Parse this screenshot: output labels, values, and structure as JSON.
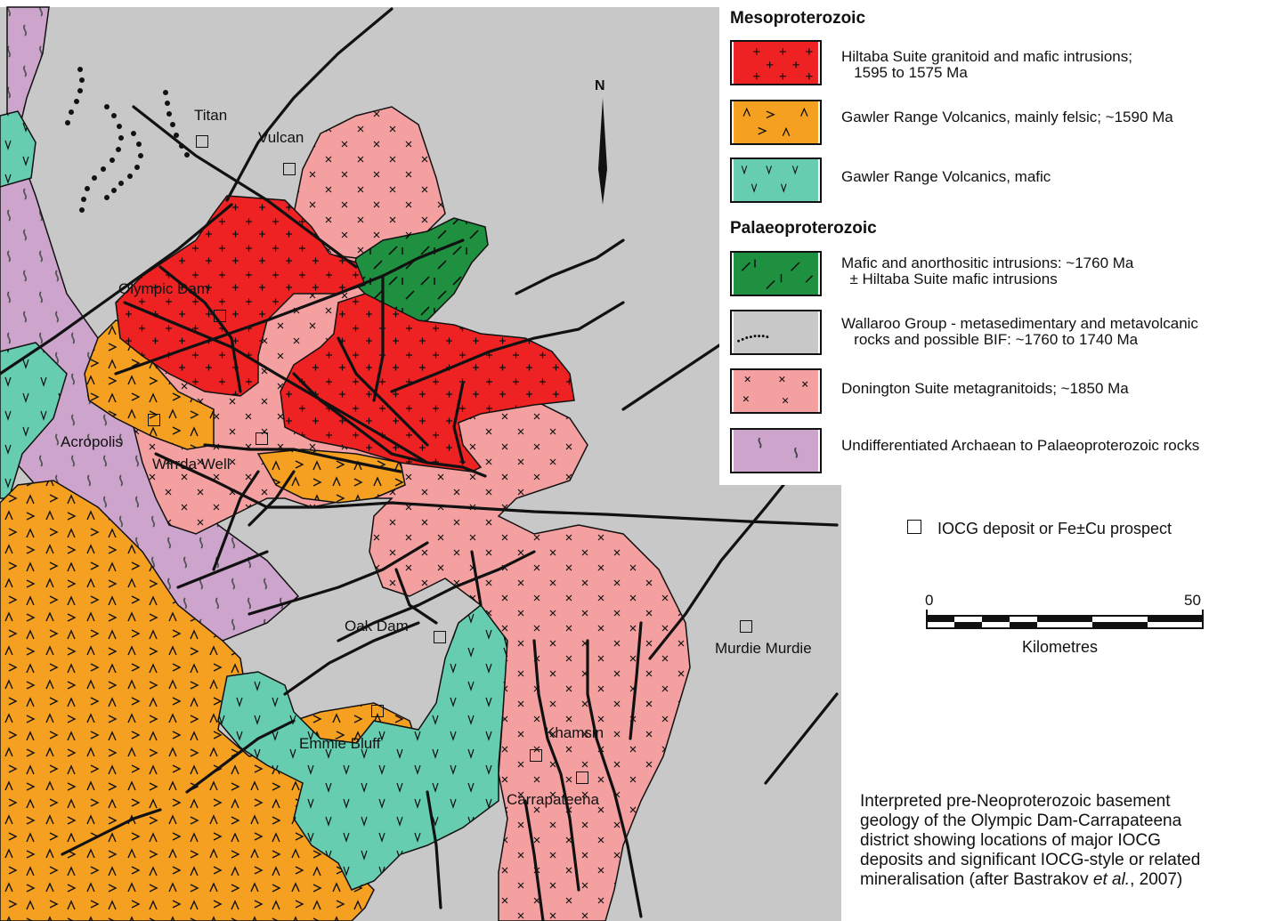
{
  "legend": {
    "heading_meso": "Mesoproterozoic",
    "heading_palaeo": "Palaeoproterozoic",
    "items": [
      {
        "key": "hiltaba",
        "label_line1": "Hiltaba Suite granitoid and mafic intrusions;",
        "label_line2": "   1595 to 1575 Ma",
        "color": "#ee2222",
        "pattern": "plus"
      },
      {
        "key": "grv_felsic",
        "label_line1": "Gawler Range Volcanics, mainly felsic; ~1590 Ma",
        "label_line2": "",
        "color": "#f5a020",
        "pattern": "chevron"
      },
      {
        "key": "grv_mafic",
        "label_line1": "Gawler Range Volcanics, mafic",
        "label_line2": "",
        "color": "#66cdb0",
        "pattern": "vee"
      },
      {
        "key": "mafic_anorthositic",
        "label_line1": "Mafic and anorthositic intrusions: ~1760 Ma",
        "label_line2": "  ± Hiltaba Suite mafic intrusions",
        "color": "#1e9040",
        "pattern": "dash"
      },
      {
        "key": "wallaroo",
        "label_line1": "Wallaroo Group - metasedimentary and metavolcanic",
        "label_line2": "   rocks and possible BIF: ~1760 to 1740 Ma",
        "color": "#c8c8c8",
        "pattern": "dots"
      },
      {
        "key": "donington",
        "label_line1": "Donington Suite metagranitoids; ~1850 Ma",
        "label_line2": "",
        "color": "#f5a0a0",
        "pattern": "cross"
      },
      {
        "key": "archaean",
        "label_line1": "Undifferentiated Archaean to Palaeoproterozoic rocks",
        "label_line2": "",
        "color": "#cca4cc",
        "pattern": "squiggle"
      }
    ],
    "deposit_symbol_label": "IOCG deposit or Fe±Cu prospect"
  },
  "north_arrow": {
    "label": "N"
  },
  "scale_bar": {
    "start": "0",
    "end": "50",
    "unit": "Kilometres"
  },
  "deposits": [
    {
      "name": "Titan"
    },
    {
      "name": "Vulcan"
    },
    {
      "name": "Olympic Dam"
    },
    {
      "name": "Acropolis"
    },
    {
      "name": "Wirrda Well"
    },
    {
      "name": "Oak Dam"
    },
    {
      "name": "Murdie Murdie"
    },
    {
      "name": "Emmie Bluff"
    },
    {
      "name": "Khamsin"
    },
    {
      "name": "Carrapateena"
    }
  ],
  "caption": {
    "line1": "Interpreted pre-Neoproterozoic basement",
    "line2": "geology of the Olympic Dam-Carrapateena",
    "line3": "district showing locations of major IOCG",
    "line4": "deposits and significant IOCG-style or related",
    "line5_pre": "mineralisation (after Bastrakov ",
    "line5_em": "et al.",
    "line5_post": ", 2007)"
  }
}
